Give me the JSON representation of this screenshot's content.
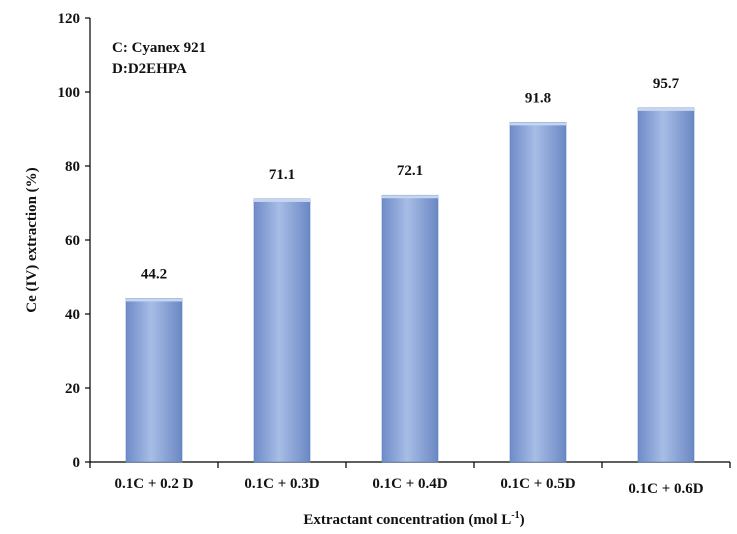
{
  "chart_data": {
    "type": "bar",
    "categories": [
      "0.1C + 0.2 D",
      "0.1C + 0.3D",
      "0.1C + 0.4D",
      "0.1C + 0.5D",
      "0.1C + 0.6D"
    ],
    "values": [
      44.2,
      71.1,
      72.1,
      91.8,
      95.7
    ],
    "data_labels": [
      "44.2",
      "71.1",
      "72.1",
      "91.8",
      "95.7"
    ],
    "title": "",
    "xlabel": "Extractant concentration (mol L",
    "xlabel_sup": "-1",
    "xlabel_end": ")",
    "ylabel": "Ce (IV) extraction (%)",
    "ylim": [
      0,
      120
    ],
    "yticks": [
      "0",
      "20",
      "40",
      "60",
      "80",
      "100",
      "120"
    ],
    "grid": false,
    "legend": "none",
    "annotations": [
      "C: Cyanex 921",
      "D:D2EHPA"
    ],
    "colors": {
      "bar_light": "#a9bfe6",
      "bar_mid": "#8aa6d8",
      "bar_dark": "#5f7fbf",
      "axis": "#000000"
    }
  }
}
